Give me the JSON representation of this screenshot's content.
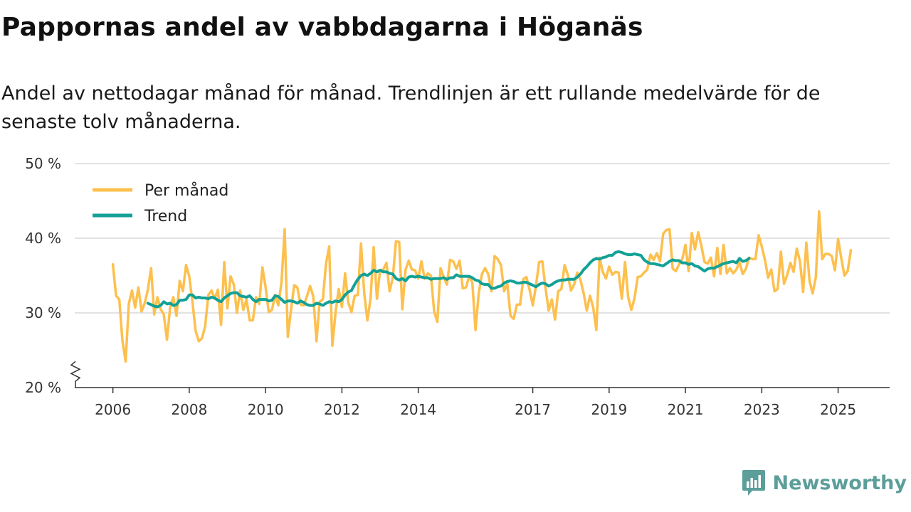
{
  "title": "Pappornas andel av vabbdagarna i Höganäs",
  "subtitle": "Andel av nettodagar månad för månad. Trendlinjen är ett rullande medelvärde för de senaste tolv månaderna.",
  "brand": "Newsworthy",
  "colors": {
    "monthly": "#fdc04e",
    "trend": "#13a196",
    "grid": "#d9d9d9",
    "axis": "#333333",
    "brand": "#5b9e9a"
  },
  "chart_data": {
    "type": "line",
    "title": "Pappornas andel av vabbdagarna i Höganäs",
    "xlabel": "",
    "ylabel": "",
    "ylim": [
      20,
      50
    ],
    "y_ticks": [
      20,
      30,
      40,
      50
    ],
    "y_tick_labels": [
      "20 %",
      "30 %",
      "40 %",
      "50 %"
    ],
    "x_ticks": [
      2006,
      2008,
      2010,
      2012,
      2014,
      2017,
      2019,
      2021,
      2023,
      2025
    ],
    "x_range": [
      2005.0,
      2026.35
    ],
    "legend": [
      "Per månad",
      "Trend"
    ],
    "legend_position": "top-left",
    "axis_break": true,
    "series": [
      {
        "name": "Per månad",
        "start": 2006.0,
        "values": [
          36.5,
          32.3,
          31.8,
          26.3,
          23.5,
          31.2,
          33.0,
          30.7,
          33.4,
          30.2,
          31.3,
          33.1,
          36.0,
          29.8,
          32.1,
          30.5,
          29.8,
          26.4,
          30.8,
          32.1,
          29.6,
          34.3,
          32.9,
          36.4,
          34.9,
          31.5,
          27.6,
          26.2,
          26.6,
          28.2,
          32.4,
          33.0,
          31.9,
          33.1,
          28.4,
          36.8,
          30.6,
          34.9,
          33.8,
          30.0,
          33.0,
          30.4,
          31.8,
          29.0,
          29.0,
          32.1,
          31.2,
          36.1,
          33.5,
          30.1,
          30.4,
          32.4,
          31.0,
          34.1,
          41.2,
          26.8,
          30.4,
          33.7,
          33.4,
          31.1,
          31.0,
          32.2,
          33.6,
          32.2,
          26.2,
          31.5,
          31.8,
          36.6,
          38.9,
          25.6,
          30.1,
          33.2,
          30.8,
          35.3,
          31.4,
          30.1,
          32.3,
          32.4,
          39.3,
          32.7,
          29.0,
          31.9,
          38.8,
          31.9,
          35.7,
          35.8,
          36.7,
          32.9,
          34.7,
          39.6,
          39.5,
          30.5,
          35.8,
          37.0,
          35.8,
          35.7,
          34.6,
          36.9,
          34.6,
          35.3,
          35.0,
          30.2,
          28.8,
          36.0,
          34.8,
          33.8,
          37.1,
          36.9,
          35.9,
          37.0,
          33.3,
          33.4,
          34.9,
          34.1,
          27.7,
          32.6,
          35.2,
          36.0,
          35.2,
          32.9,
          37.6,
          37.2,
          36.4,
          32.9,
          33.9,
          29.6,
          29.2,
          31.1,
          31.1,
          34.5,
          34.8,
          33.1,
          31.0,
          33.6,
          36.8,
          36.9,
          33.4,
          30.3,
          31.8,
          29.1,
          32.9,
          33.2,
          36.4,
          35.1,
          33.0,
          33.8,
          35.4,
          34.4,
          32.6,
          30.3,
          32.3,
          30.7,
          27.7,
          37.4,
          35.5,
          34.6,
          36.2,
          35.1,
          35.5,
          35.4,
          31.9,
          36.8,
          32.1,
          30.4,
          32.0,
          34.8,
          34.9,
          35.4,
          35.8,
          37.8,
          37.1,
          38.0,
          36.9,
          40.6,
          41.1,
          41.2,
          35.9,
          35.6,
          36.5,
          37.2,
          39.1,
          35.6,
          40.7,
          38.5,
          40.8,
          39.0,
          36.8,
          36.6,
          37.4,
          34.9,
          38.7,
          35.2,
          39.1,
          35.3,
          36.0,
          35.3,
          35.8,
          36.8,
          35.2,
          35.9,
          37.4,
          37.2,
          37.2,
          40.4,
          38.9,
          37.1,
          34.7,
          35.8,
          32.9,
          33.2,
          38.2,
          33.9,
          35.1,
          36.7,
          35.5,
          38.6,
          36.9,
          32.8,
          39.4,
          34.3,
          32.6,
          34.8,
          43.6,
          37.2,
          37.9,
          37.9,
          37.6,
          35.7,
          39.9,
          37.3,
          35.0,
          35.6,
          38.4
        ]
      },
      {
        "name": "Trend",
        "start": 2006.9167,
        "values": [
          31.3,
          31.1,
          30.9,
          30.8,
          31.0,
          31.5,
          31.2,
          31.3,
          31.0,
          31.1,
          31.7,
          31.7,
          31.8,
          32.4,
          32.4,
          32.0,
          32.1,
          32.0,
          32.0,
          31.9,
          32.1,
          32.0,
          31.7,
          31.5,
          32.0,
          32.3,
          32.6,
          32.7,
          32.7,
          32.3,
          32.2,
          32.1,
          32.3,
          31.8,
          31.5,
          31.8,
          31.8,
          31.8,
          31.6,
          31.7,
          32.3,
          32.2,
          31.8,
          31.4,
          31.6,
          31.6,
          31.5,
          31.3,
          31.6,
          31.4,
          31.1,
          31.0,
          31.0,
          31.3,
          31.2,
          31.0,
          31.3,
          31.5,
          31.4,
          31.6,
          31.5,
          31.8,
          32.4,
          32.8,
          33.0,
          33.8,
          34.5,
          35.0,
          35.2,
          35.0,
          35.3,
          35.7,
          35.5,
          35.7,
          35.5,
          35.5,
          35.3,
          35.2,
          34.6,
          34.4,
          34.6,
          34.3,
          34.8,
          34.9,
          34.8,
          34.9,
          34.8,
          34.7,
          34.7,
          34.5,
          34.6,
          34.6,
          34.6,
          34.7,
          34.5,
          34.7,
          34.7,
          35.1,
          34.9,
          34.9,
          34.9,
          34.9,
          34.7,
          34.4,
          34.3,
          33.9,
          33.8,
          33.8,
          33.3,
          33.3,
          33.5,
          33.6,
          34.0,
          34.2,
          34.3,
          34.2,
          34.0,
          34.0,
          34.1,
          34.1,
          33.9,
          33.7,
          33.5,
          33.8,
          34.0,
          33.9,
          33.6,
          33.8,
          34.1,
          34.3,
          34.4,
          34.4,
          34.5,
          34.5,
          34.5,
          34.8,
          35.2,
          35.8,
          36.2,
          36.7,
          37.1,
          37.3,
          37.2,
          37.4,
          37.5,
          37.7,
          37.7,
          38.1,
          38.2,
          38.1,
          37.9,
          37.8,
          37.8,
          37.9,
          37.8,
          37.7,
          37.1,
          36.8,
          36.6,
          36.6,
          36.5,
          36.4,
          36.3,
          36.6,
          36.9,
          37.1,
          37.0,
          37.0,
          36.7,
          36.7,
          36.5,
          36.6,
          36.3,
          36.2,
          35.9,
          35.6,
          35.9,
          36.0,
          36.0,
          36.2,
          36.4,
          36.6,
          36.7,
          36.8,
          36.9,
          36.7,
          37.3,
          36.9,
          37.0,
          37.3
        ]
      }
    ]
  }
}
